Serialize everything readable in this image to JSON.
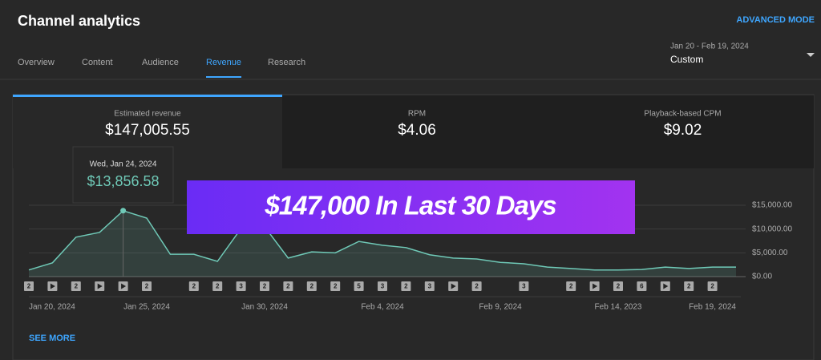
{
  "header": {
    "title": "Channel analytics",
    "advanced_mode": "ADVANCED MODE"
  },
  "tabs": [
    "Overview",
    "Content",
    "Audience",
    "Revenue",
    "Research"
  ],
  "active_tab": 3,
  "date_range": {
    "range": "Jan 20 - Feb 19, 2024",
    "preset": "Custom"
  },
  "metrics": [
    {
      "label": "Estimated revenue",
      "value": "$147,005.55"
    },
    {
      "label": "RPM",
      "value": "$4.06"
    },
    {
      "label": "Playback-based CPM",
      "value": "$9.02"
    }
  ],
  "banner": "$147,000 In Last 30 Days",
  "see_more": "SEE MORE",
  "chart_data": {
    "type": "area",
    "categories": [
      "Jan 20, 2024",
      null,
      null,
      null,
      null,
      "Jan 25, 2024",
      null,
      null,
      null,
      null,
      "Jan 30, 2024",
      null,
      null,
      null,
      null,
      "Feb 4, 2024",
      null,
      null,
      null,
      null,
      "Feb 9, 2024",
      null,
      null,
      null,
      null,
      "Feb 14, 2023",
      null,
      null,
      null,
      null,
      "Feb 19, 2024"
    ],
    "values": [
      1400,
      2900,
      8300,
      9300,
      13856.58,
      12300,
      4700,
      4700,
      3200,
      10100,
      10500,
      3900,
      5200,
      5000,
      7400,
      6600,
      6100,
      4600,
      3900,
      3700,
      3000,
      2700,
      2000,
      1700,
      1400,
      1400,
      1500,
      2000,
      1700,
      2000,
      2000
    ],
    "value_labels": [
      null,
      null,
      null,
      null,
      "$13,856.58",
      null,
      null,
      null,
      null,
      null,
      null,
      null,
      null,
      null,
      null,
      null,
      null,
      null,
      null,
      null,
      null,
      null,
      null,
      null,
      null,
      null,
      null,
      null,
      null,
      null,
      null
    ],
    "tooltip_date": "Wed, Jan 24, 2024",
    "color": "#6fc9b7",
    "markers": [
      2,
      true,
      2,
      true,
      true,
      2,
      null,
      2,
      2,
      3,
      2,
      2,
      2,
      2,
      5,
      3,
      2,
      3,
      true,
      2,
      null,
      3,
      null,
      2,
      true,
      2,
      6,
      true,
      2,
      2,
      null
    ],
    "ylim": [
      0,
      15000
    ],
    "yticks": [
      {
        "value": 0,
        "label": "$0.00"
      },
      {
        "value": 5000,
        "label": "$5,000.00"
      },
      {
        "value": 10000,
        "label": "$10,000.00"
      },
      {
        "value": 15000,
        "label": "$15,000.00"
      }
    ],
    "grid": true
  }
}
